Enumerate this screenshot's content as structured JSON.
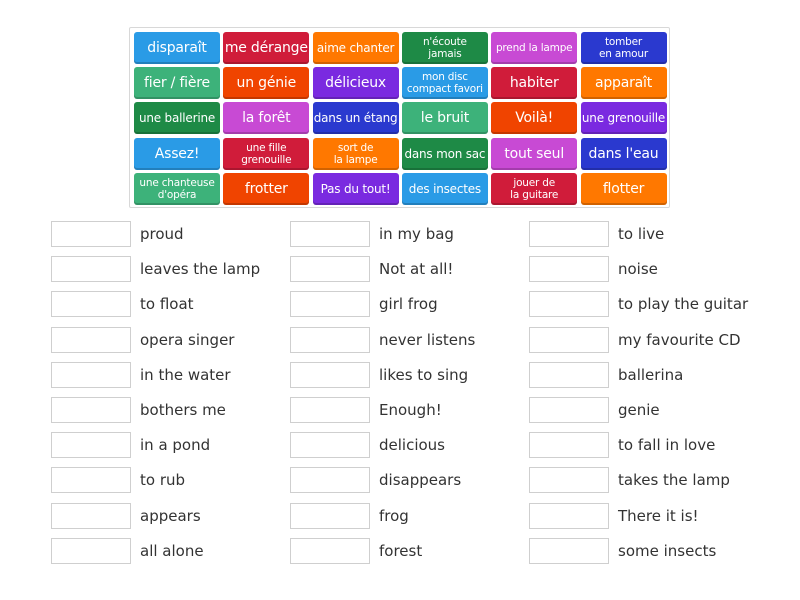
{
  "colors": {
    "blue": "#2a9be6",
    "red": "#d01c3a",
    "orange": "#ff7800",
    "darkgreen": "#1e8a46",
    "magenta": "#c84ad4",
    "indigo": "#2a39cf",
    "green": "#3db27a",
    "orangered": "#f04400",
    "purple": "#7a2ae0"
  },
  "tiles": [
    {
      "text": "disparaît",
      "color": "blue",
      "size": "lg"
    },
    {
      "text": "me dérange",
      "color": "red",
      "size": "lg"
    },
    {
      "text": "aime chanter",
      "color": "orange",
      "size": "md"
    },
    {
      "text": "n'écoute\njamais",
      "color": "darkgreen",
      "size": "sm"
    },
    {
      "text": "prend la lampe",
      "color": "magenta",
      "size": "sm"
    },
    {
      "text": "tomber\nen amour",
      "color": "indigo",
      "size": "sm"
    },
    {
      "text": "fier / fière",
      "color": "green",
      "size": "lg"
    },
    {
      "text": "un génie",
      "color": "orangered",
      "size": "lg"
    },
    {
      "text": "délicieux",
      "color": "purple",
      "size": "lg"
    },
    {
      "text": "mon disc\ncompact favori",
      "color": "blue",
      "size": "sm"
    },
    {
      "text": "habiter",
      "color": "red",
      "size": "lg"
    },
    {
      "text": "apparaît",
      "color": "orange",
      "size": "lg"
    },
    {
      "text": "une ballerine",
      "color": "darkgreen",
      "size": "md"
    },
    {
      "text": "la forêt",
      "color": "magenta",
      "size": "lg"
    },
    {
      "text": "dans un étang",
      "color": "indigo",
      "size": "md"
    },
    {
      "text": "le bruit",
      "color": "green",
      "size": "lg"
    },
    {
      "text": "Voilà!",
      "color": "orangered",
      "size": "lg"
    },
    {
      "text": "une grenouille",
      "color": "purple",
      "size": "md"
    },
    {
      "text": "Assez!",
      "color": "blue",
      "size": "lg"
    },
    {
      "text": "une fille\ngrenouille",
      "color": "red",
      "size": "sm"
    },
    {
      "text": "sort de\nla lampe",
      "color": "orange",
      "size": "sm"
    },
    {
      "text": "dans mon sac",
      "color": "darkgreen",
      "size": "md"
    },
    {
      "text": "tout seul",
      "color": "magenta",
      "size": "lg"
    },
    {
      "text": "dans l'eau",
      "color": "indigo",
      "size": "lg"
    },
    {
      "text": "une chanteuse\nd'opéra",
      "color": "green",
      "size": "sm"
    },
    {
      "text": "frotter",
      "color": "orangered",
      "size": "lg"
    },
    {
      "text": "Pas du tout!",
      "color": "purple",
      "size": "md"
    },
    {
      "text": "des insectes",
      "color": "blue",
      "size": "md"
    },
    {
      "text": "jouer de\nla guitare",
      "color": "red",
      "size": "sm"
    },
    {
      "text": "flotter",
      "color": "orange",
      "size": "lg"
    }
  ],
  "columns": [
    [
      "proud",
      "leaves the lamp",
      "to float",
      "opera singer",
      "in the water",
      "bothers me",
      "in a pond",
      "to rub",
      "appears",
      "all alone"
    ],
    [
      "in my bag",
      "Not at all!",
      "girl frog",
      "never listens",
      "likes to sing",
      "Enough!",
      "delicious",
      "disappears",
      "frog",
      "forest"
    ],
    [
      "to live",
      "noise",
      "to play the guitar",
      "my favourite CD",
      "ballerina",
      "genie",
      "to fall in love",
      "takes the lamp",
      "There it is!",
      "some insects"
    ]
  ]
}
